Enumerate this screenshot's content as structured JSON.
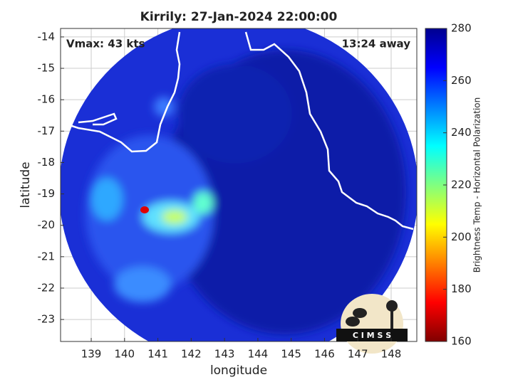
{
  "chart_data": {
    "type": "heatmap",
    "title": "Kirrily: 27-Jan-2024 22:00:00",
    "x_label": "longitude",
    "y_label": "latitude",
    "xlim": [
      138.08,
      148.77
    ],
    "xticks": [
      139,
      140,
      141,
      142,
      143,
      144,
      145,
      146,
      147,
      148
    ],
    "ylim": [
      -23.7,
      -13.73
    ],
    "yticks": [
      -14,
      -15,
      -16,
      -17,
      -18,
      -19,
      -20,
      -21,
      -22,
      -23
    ],
    "grid": true,
    "annotations": [
      "Vmax: 43 kts",
      "13:24 away"
    ],
    "colorbar": {
      "label": "Brightness Temp - Horizontal Polarization",
      "lim": [
        160,
        280
      ],
      "ticks": [
        160,
        180,
        200,
        220,
        240,
        260,
        280
      ],
      "colormap": [
        "#800000",
        "#ff0000",
        "#ff8000",
        "#ffff00",
        "#80ff80",
        "#00ffff",
        "#0080ff",
        "#0000ff",
        "#00008f"
      ]
    },
    "logo_text": "C I M S S"
  }
}
